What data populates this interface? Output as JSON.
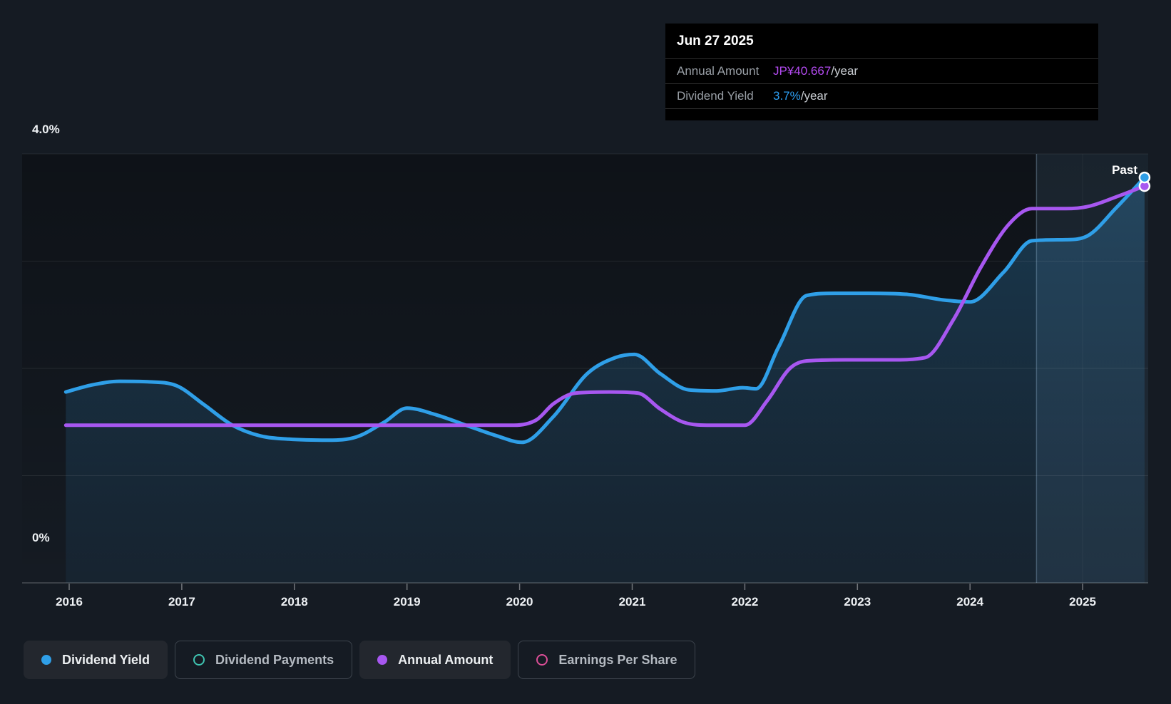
{
  "chart": {
    "past_label": "Past",
    "tooltip": {
      "date": "Jun 27 2025",
      "rows": [
        {
          "label": "Annual Amount",
          "value": "JP¥40.667",
          "suffix": "/year",
          "color": "#b44af2"
        },
        {
          "label": "Dividend Yield",
          "value": "3.7%",
          "suffix": "/year",
          "color": "#2d9ef2"
        }
      ]
    }
  },
  "chart_data": {
    "type": "line",
    "title": "Dividend yield and annual dividend amount history",
    "x_axis": {
      "years": [
        "2016",
        "2017",
        "2018",
        "2019",
        "2020",
        "2021",
        "2022",
        "2023",
        "2024",
        "2025"
      ],
      "range": [
        2015.97,
        2025.55
      ]
    },
    "y_axis": {
      "min": 0,
      "max": 4,
      "unit": "%",
      "gridline_step": 1,
      "top_label": "4.0%",
      "bottom_label": "0%"
    },
    "past_region_start_year": 2024.59,
    "legend_position": "bottom",
    "latest": {
      "date": "Jun 27 2025",
      "annual_amount": "JP¥40.667/year",
      "dividend_yield": "3.7%/year"
    },
    "series": [
      {
        "name": "Dividend Yield",
        "unit": "%",
        "color": "#2f9fe8",
        "area_fill": true,
        "points": [
          [
            2015.97,
            1.78
          ],
          [
            2016.2,
            1.845
          ],
          [
            2016.45,
            1.88
          ],
          [
            2016.7,
            1.875
          ],
          [
            2016.95,
            1.84
          ],
          [
            2017.2,
            1.66
          ],
          [
            2017.45,
            1.47
          ],
          [
            2017.7,
            1.37
          ],
          [
            2017.95,
            1.34
          ],
          [
            2018.3,
            1.33
          ],
          [
            2018.55,
            1.36
          ],
          [
            2018.8,
            1.5
          ],
          [
            2019.0,
            1.63
          ],
          [
            2019.25,
            1.57
          ],
          [
            2019.55,
            1.46
          ],
          [
            2019.8,
            1.37
          ],
          [
            2020.02,
            1.31
          ],
          [
            2020.3,
            1.55
          ],
          [
            2020.6,
            1.95
          ],
          [
            2020.85,
            2.1
          ],
          [
            2021.02,
            2.13
          ],
          [
            2021.25,
            1.95
          ],
          [
            2021.5,
            1.8
          ],
          [
            2021.75,
            1.79
          ],
          [
            2021.98,
            1.82
          ],
          [
            2022.1,
            1.81
          ],
          [
            2022.3,
            2.2
          ],
          [
            2022.55,
            2.68
          ],
          [
            2022.8,
            2.7
          ],
          [
            2023.1,
            2.7
          ],
          [
            2023.45,
            2.69
          ],
          [
            2023.75,
            2.64
          ],
          [
            2024.0,
            2.62
          ],
          [
            2024.3,
            2.9
          ],
          [
            2024.55,
            3.19
          ],
          [
            2024.85,
            3.2
          ],
          [
            2025.05,
            3.24
          ],
          [
            2025.3,
            3.5
          ],
          [
            2025.55,
            3.78
          ]
        ]
      },
      {
        "name": "Annual Amount",
        "unit": "JP¥ (plotted on own scale, shown in yield-axis units)",
        "color": "#a757f0",
        "area_fill": false,
        "end_value_label": "JP¥40.667/year",
        "points": [
          [
            2015.97,
            1.47
          ],
          [
            2016.5,
            1.47
          ],
          [
            2017.0,
            1.47
          ],
          [
            2017.5,
            1.47
          ],
          [
            2018.0,
            1.47
          ],
          [
            2018.5,
            1.47
          ],
          [
            2019.0,
            1.47
          ],
          [
            2019.5,
            1.47
          ],
          [
            2019.95,
            1.47
          ],
          [
            2020.15,
            1.52
          ],
          [
            2020.3,
            1.67
          ],
          [
            2020.5,
            1.77
          ],
          [
            2020.8,
            1.78
          ],
          [
            2021.05,
            1.77
          ],
          [
            2021.25,
            1.62
          ],
          [
            2021.45,
            1.5
          ],
          [
            2021.7,
            1.47
          ],
          [
            2022.0,
            1.47
          ],
          [
            2022.2,
            1.7
          ],
          [
            2022.4,
            2.0
          ],
          [
            2022.55,
            2.07
          ],
          [
            2022.9,
            2.08
          ],
          [
            2023.3,
            2.08
          ],
          [
            2023.6,
            2.1
          ],
          [
            2023.85,
            2.45
          ],
          [
            2024.1,
            2.95
          ],
          [
            2024.35,
            3.35
          ],
          [
            2024.55,
            3.49
          ],
          [
            2024.85,
            3.49
          ],
          [
            2025.05,
            3.51
          ],
          [
            2025.3,
            3.6
          ],
          [
            2025.55,
            3.7
          ]
        ]
      }
    ]
  },
  "legend": {
    "items": [
      {
        "label": "Dividend Yield",
        "color": "#2f9fe8",
        "marker": "dot",
        "active": true
      },
      {
        "label": "Dividend Payments",
        "color": "#3fc4b1",
        "marker": "ring",
        "active": false
      },
      {
        "label": "Annual Amount",
        "color": "#a757f0",
        "marker": "dot",
        "active": true
      },
      {
        "label": "Earnings Per Share",
        "color": "#da4e96",
        "marker": "ring",
        "active": false
      }
    ]
  },
  "colors": {
    "page_bg": "#151b23",
    "tooltip_bg": "#000000",
    "gridline": "rgba(255,255,255,0.08)",
    "axis_line": "rgba(255,255,255,0.22)",
    "past_divider": "rgba(170,205,235,0.30)",
    "past_overlay": "rgba(130,190,240,0.10)",
    "area_fill_top": "rgba(47,132,186,0.34)",
    "area_fill_bottom": "rgba(40,110,160,0.10)"
  }
}
